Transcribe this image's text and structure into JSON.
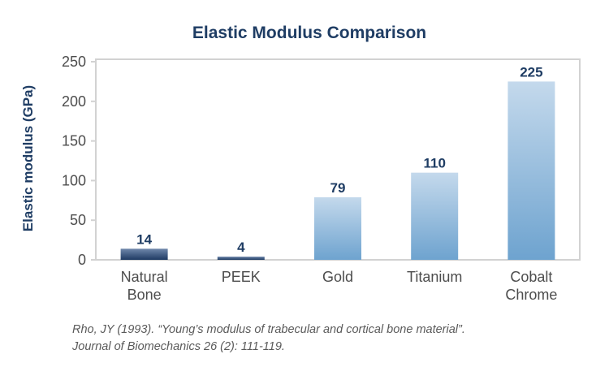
{
  "chart_data": {
    "type": "bar",
    "title": "Elastic Modulus Comparison",
    "ylabel": "Elastic modulus (GPa)",
    "xlabel": "",
    "ylim": [
      0,
      250
    ],
    "yticks": [
      0,
      50,
      100,
      150,
      200,
      250
    ],
    "grid": false,
    "legend": "none",
    "categories": [
      [
        "Natural",
        "Bone"
      ],
      [
        "PEEK"
      ],
      [
        "Gold"
      ],
      [
        "Titanium"
      ],
      [
        "Cobalt",
        "Chrome"
      ]
    ],
    "values": [
      14,
      4,
      79,
      110,
      225
    ],
    "data_labels": [
      "14",
      "4",
      "79",
      "110",
      "225"
    ],
    "colors": {
      "dark_bar_top": "#6f87ab",
      "dark_bar_bottom": "#1e3a63",
      "light_bar_top": "#c4d9ec",
      "light_bar_bottom": "#6ea3cf",
      "axis": "#d2d2d2",
      "title": "#1f3d64"
    },
    "bar_styles": [
      "dark",
      "dark",
      "light",
      "light",
      "light"
    ]
  },
  "citation": {
    "line1": "Rho, JY (1993). “Young’s modulus of trabecular and cortical bone material”.",
    "line2": "Journal of Biomechanics 26 (2): 111-119."
  }
}
